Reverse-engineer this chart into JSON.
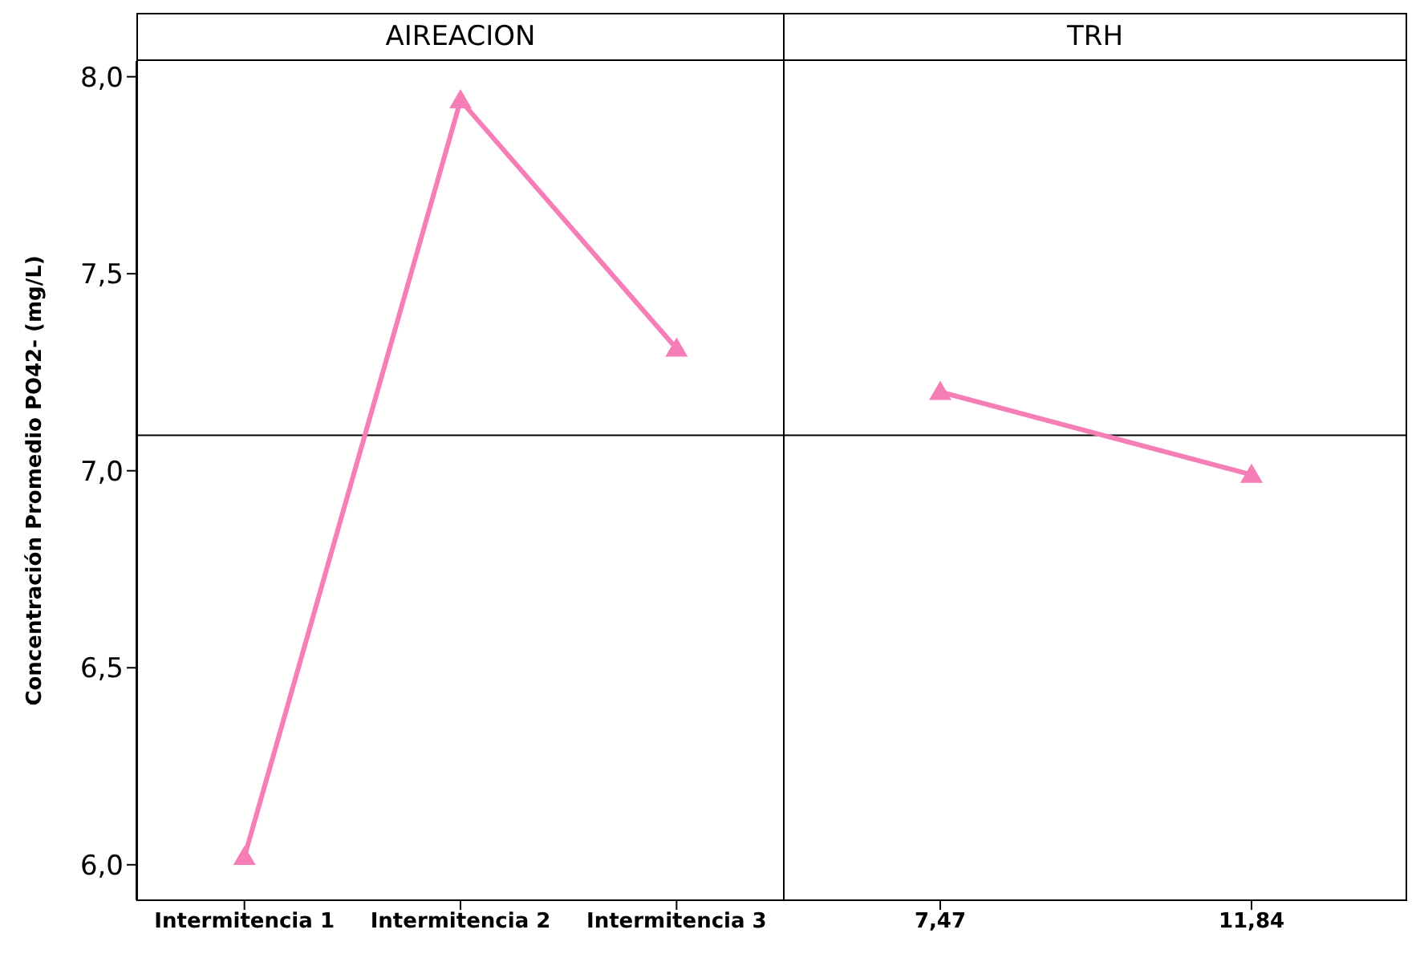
{
  "chart_data": [
    {
      "type": "line",
      "title": "AIREACION",
      "ylabel": "Concentración Promedio PO42- (mg/L)",
      "categories": [
        "Intermitencia 1",
        "Intermitencia 2",
        "Intermitencia 3"
      ],
      "series": [
        {
          "color": "#f57eb6",
          "values": [
            6.02,
            7.94,
            7.31
          ]
        }
      ],
      "ylim": [
        5.91,
        8.04
      ],
      "yticks": [
        {
          "value": 6,
          "label": "6,0"
        },
        {
          "value": 6.5,
          "label": "6,5"
        },
        {
          "value": 7,
          "label": "7,0"
        },
        {
          "value": 7.5,
          "label": "7,5"
        },
        {
          "value": 8,
          "label": "8,0"
        }
      ],
      "ref_lines": [
        {
          "axis": "y",
          "value": 7.09,
          "color": "#000000"
        }
      ],
      "marker": "triangle",
      "line_style": "solid",
      "grid": false,
      "legend": false
    },
    {
      "type": "line",
      "title": "TRH",
      "categories": [
        "7,47",
        "11,84"
      ],
      "series": [
        {
          "color": "#f57eb6",
          "values": [
            7.2,
            6.99
          ]
        }
      ],
      "ylim": [
        5.91,
        8.04
      ],
      "tick_labels": "x",
      "ref_lines": [
        {
          "axis": "y",
          "value": 7.09,
          "color": "#000000"
        }
      ],
      "marker": "triangle",
      "line_style": "solid",
      "grid": false,
      "legend": false
    }
  ]
}
